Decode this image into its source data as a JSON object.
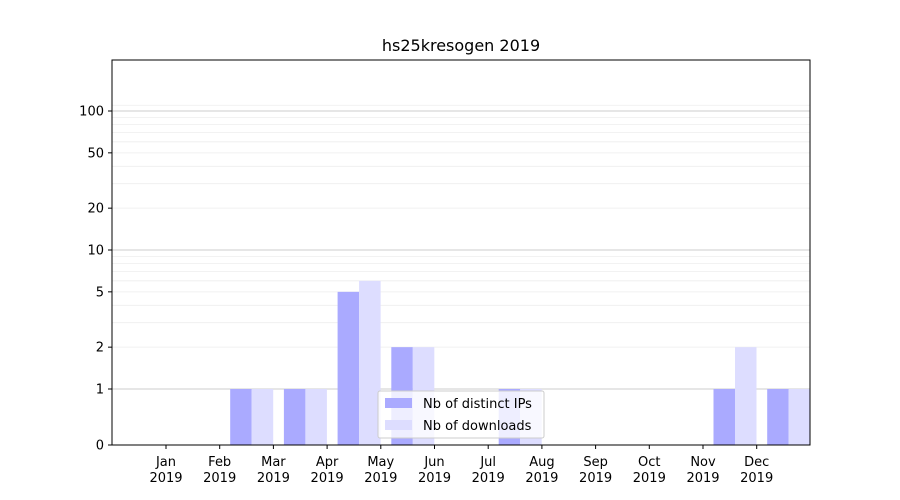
{
  "chart_data": {
    "type": "bar",
    "title": "hs25kresogen 2019",
    "xlabel": "",
    "ylabel": "",
    "yscale": "symlog",
    "yticks": [
      0,
      1,
      2,
      5,
      10,
      20,
      50,
      100
    ],
    "ytick_labels": [
      "0",
      "1",
      "2",
      "5",
      "10",
      "20",
      "50",
      "100"
    ],
    "ylim": [
      0,
      120
    ],
    "categories": [
      "Jan",
      "Feb",
      "Mar",
      "Apr",
      "May",
      "Jun",
      "Jul",
      "Aug",
      "Sep",
      "Oct",
      "Nov",
      "Dec"
    ],
    "category_year": "2019",
    "series": [
      {
        "name": "Nb of distinct IPs",
        "color": "#aaaaff",
        "values": [
          0,
          1,
          1,
          5,
          2,
          0,
          1,
          0,
          0,
          0,
          1,
          1
        ]
      },
      {
        "name": "Nb of downloads",
        "color": "#ddddff",
        "values": [
          0,
          1,
          1,
          6,
          2,
          0,
          1,
          0,
          0,
          0,
          2,
          1
        ]
      }
    ],
    "grid": true,
    "legend_position": "lower-center"
  }
}
